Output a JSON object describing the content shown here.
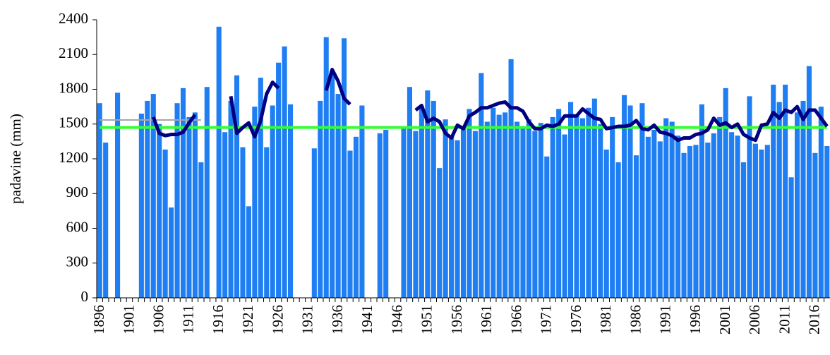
{
  "chart_data": {
    "type": "bar",
    "y_label": "padavine (mm)",
    "categories": [
      "1896",
      null,
      null,
      null,
      null,
      "1901",
      null,
      null,
      null,
      null,
      "1906",
      null,
      null,
      null,
      null,
      "1911",
      null,
      null,
      null,
      null,
      "1916",
      null,
      null,
      null,
      null,
      "1921",
      null,
      null,
      null,
      null,
      "1926",
      null,
      null,
      null,
      null,
      "1931",
      null,
      null,
      null,
      null,
      "1936",
      null,
      null,
      null,
      null,
      "1941",
      null,
      null,
      null,
      null,
      "1946",
      null,
      null,
      null,
      null,
      "1951",
      null,
      null,
      null,
      null,
      "1956",
      null,
      null,
      null,
      null,
      "1961",
      null,
      null,
      null,
      null,
      "1966",
      null,
      null,
      null,
      null,
      "1971",
      null,
      null,
      null,
      null,
      "1976",
      null,
      null,
      null,
      null,
      "1981",
      null,
      null,
      null,
      null,
      "1986",
      null,
      null,
      null,
      null,
      "1991",
      null,
      null,
      null,
      null,
      "1996",
      null,
      null,
      null,
      null,
      "2001",
      null,
      null,
      null,
      null,
      "2006",
      null,
      null,
      null,
      null,
      "2011",
      null,
      null,
      null,
      null,
      "2016",
      null,
      null
    ],
    "series": [
      {
        "type": "bar",
        "color": "#1f7ef2",
        "values": [
          1680,
          1340,
          null,
          1770,
          null,
          null,
          null,
          1590,
          1700,
          1760,
          1500,
          1280,
          780,
          1680,
          1810,
          1560,
          1600,
          1170,
          1820,
          null,
          2340,
          1430,
          1700,
          1920,
          1300,
          790,
          1650,
          1900,
          1300,
          1660,
          2030,
          2170,
          1670,
          null,
          null,
          null,
          1290,
          1700,
          2250,
          1960,
          1760,
          2240,
          1270,
          1390,
          1660,
          null,
          null,
          1420,
          1450,
          null,
          null,
          1460,
          1820,
          1440,
          1650,
          1790,
          1700,
          1120,
          1540,
          1400,
          1360,
          1460,
          1630,
          1440,
          1940,
          1520,
          1640,
          1580,
          1600,
          2060,
          1520,
          1460,
          1540,
          1440,
          1510,
          1220,
          1560,
          1630,
          1410,
          1690,
          1580,
          1550,
          1640,
          1720,
          1500,
          1280,
          1560,
          1170,
          1750,
          1660,
          1230,
          1680,
          1390,
          1450,
          1350,
          1550,
          1520,
          1400,
          1250,
          1310,
          1320,
          1670,
          1340,
          1420,
          1560,
          1810,
          1430,
          1400,
          1170,
          1740,
          1330,
          1280,
          1320,
          1840,
          1690,
          1840,
          1040,
          1600,
          1700,
          2000,
          1250,
          1650,
          1310
        ]
      },
      {
        "type": "line",
        "color": "#a6a6a6",
        "width": 2,
        "values": [
          1535,
          1535,
          1535,
          1535,
          1535,
          1535,
          1535,
          1535,
          1535,
          1535,
          1535,
          1535,
          1535,
          1535,
          1535,
          1535,
          1535,
          1535,
          null,
          null,
          null,
          null,
          null,
          null,
          null,
          null,
          null,
          null,
          null,
          null,
          null,
          null,
          null,
          null,
          null,
          null,
          null,
          null,
          null,
          null,
          null,
          null,
          null,
          null,
          null,
          null,
          null,
          null,
          null,
          null,
          null,
          null,
          null,
          null,
          null,
          null,
          null,
          null,
          null,
          null,
          null,
          null,
          null,
          null,
          null,
          null,
          null,
          null,
          null,
          null,
          null,
          null,
          null,
          null,
          null,
          null,
          null,
          null,
          null,
          null,
          null,
          null,
          null,
          null,
          null,
          null,
          null,
          null,
          null,
          null,
          null,
          null,
          null,
          null,
          null,
          null,
          null,
          null,
          null,
          null,
          null,
          null,
          null,
          null,
          null,
          null,
          null,
          null,
          null,
          null,
          null,
          null,
          null,
          null,
          null,
          null,
          null,
          null,
          null,
          null,
          null,
          null,
          null
        ]
      },
      {
        "type": "line",
        "color": "#33ff33",
        "width": 4,
        "values": [
          1470,
          1470,
          1470,
          1470,
          1470,
          1470,
          1470,
          1470,
          1470,
          1470,
          1470,
          1470,
          1470,
          1470,
          1470,
          1470,
          1470,
          1470,
          1470,
          1470,
          1470,
          1470,
          1470,
          1470,
          1470,
          1470,
          1470,
          1470,
          1470,
          1470,
          1470,
          1470,
          1470,
          1470,
          1470,
          1470,
          1470,
          1470,
          1470,
          1470,
          1470,
          1470,
          1470,
          1470,
          1470,
          1470,
          1470,
          1470,
          1470,
          1470,
          1470,
          1470,
          1470,
          1470,
          1470,
          1470,
          1470,
          1470,
          1470,
          1470,
          1470,
          1470,
          1470,
          1470,
          1470,
          1470,
          1470,
          1470,
          1470,
          1470,
          1470,
          1470,
          1470,
          1470,
          1470,
          1470,
          1470,
          1470,
          1470,
          1470,
          1470,
          1470,
          1470,
          1470,
          1470,
          1470,
          1470,
          1470,
          1470,
          1470,
          1470,
          1470,
          1470,
          1470,
          1470,
          1470,
          1470,
          1470,
          1470,
          1470,
          1470,
          1470,
          1470,
          1470,
          1470,
          1470,
          1470,
          1470,
          1470,
          1470,
          1470,
          1470,
          1470,
          1470,
          1470,
          1470,
          1470,
          1470,
          1470,
          1470,
          1470,
          1470,
          1470
        ]
      },
      {
        "type": "line",
        "color": "#000080",
        "width": 5,
        "values": [
          null,
          null,
          null,
          null,
          null,
          null,
          null,
          null,
          null,
          1560,
          1420,
          1400,
          1410,
          1410,
          1430,
          1510,
          1580,
          null,
          null,
          null,
          null,
          null,
          1740,
          1420,
          1470,
          1510,
          1390,
          1530,
          1760,
          1860,
          1810,
          null,
          null,
          null,
          null,
          null,
          null,
          null,
          1790,
          1970,
          1870,
          1720,
          1670,
          null,
          null,
          null,
          null,
          null,
          null,
          null,
          null,
          null,
          null,
          1620,
          1660,
          1520,
          1550,
          1520,
          1420,
          1380,
          1490,
          1460,
          1570,
          1600,
          1640,
          1640,
          1660,
          1680,
          1690,
          1640,
          1640,
          1610,
          1520,
          1460,
          1460,
          1490,
          1480,
          1500,
          1570,
          1570,
          1570,
          1630,
          1590,
          1550,
          1540,
          1460,
          1470,
          1480,
          1480,
          1490,
          1530,
          1460,
          1450,
          1490,
          1430,
          1420,
          1400,
          1360,
          1380,
          1380,
          1410,
          1420,
          1450,
          1550,
          1490,
          1510,
          1470,
          1500,
          1410,
          1380,
          1360,
          1490,
          1500,
          1600,
          1550,
          1620,
          1600,
          1650,
          1540,
          1620,
          1620,
          1550,
          1480
        ]
      }
    ],
    "ylim": [
      0,
      2400
    ],
    "yticks": [
      0,
      300,
      600,
      900,
      1200,
      1500,
      1800,
      2100,
      2400
    ],
    "grid": false
  }
}
